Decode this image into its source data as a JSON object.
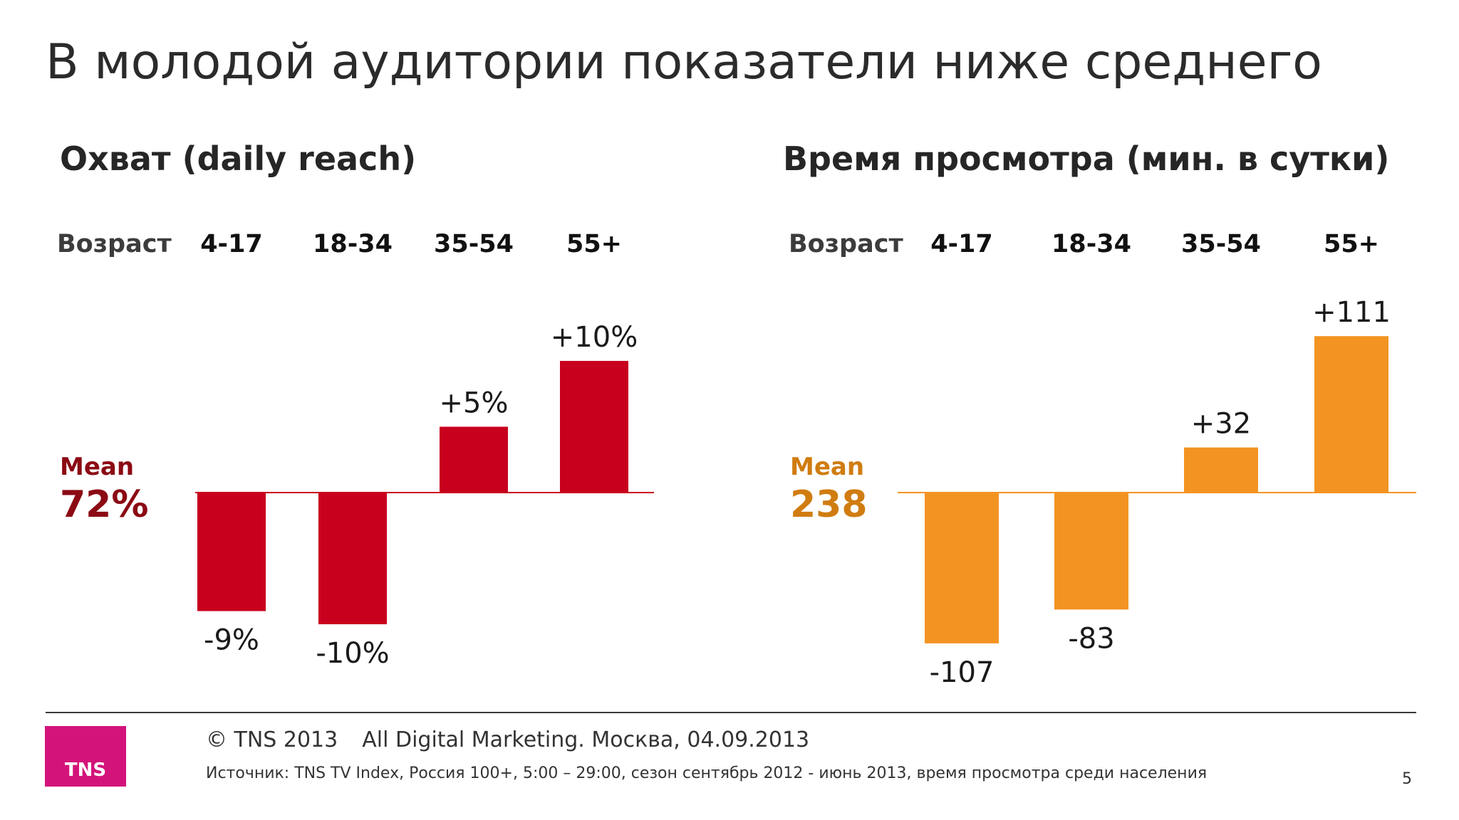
{
  "slide": {
    "title": "В молодой аудитории показатели ниже среднего",
    "page_number": "5"
  },
  "footer": {
    "copyright": "© TNS 2013",
    "event": "All Digital Marketing. Москва, 04.09.2013",
    "source": "Источник: TNS TV Index, Россия 100+, 5:00 – 29:00, сезон сентябрь 2012 - июнь 2013, время просмотра среди населения",
    "logo_text": "TNS",
    "logo_color": "#d3137a"
  },
  "chart_data": [
    {
      "type": "bar",
      "title": "Охват (daily reach)",
      "category_header": "Возраст",
      "categories": [
        "4-17",
        "18-34",
        "35-54",
        "55+"
      ],
      "values": [
        -9,
        -10,
        5,
        10
      ],
      "value_labels": [
        "-9%",
        "-10%",
        "+5%",
        "+10%"
      ],
      "baseline_label": "Mean",
      "baseline_value": "72%",
      "bar_color": "#c8001e",
      "baseline_text_color": "#8b0a14",
      "ylim": [
        -10,
        10
      ]
    },
    {
      "type": "bar",
      "title": "Время просмотра (мин. в сутки)",
      "category_header": "Возраст",
      "categories": [
        "4-17",
        "18-34",
        "35-54",
        "55+"
      ],
      "values": [
        -107,
        -83,
        32,
        111
      ],
      "value_labels": [
        "-107",
        "-83",
        "+32",
        "+111"
      ],
      "baseline_label": "Mean",
      "baseline_value": "238",
      "bar_color": "#f39422",
      "baseline_text_color": "#d07c10",
      "ylim": [
        -107,
        111
      ]
    }
  ]
}
